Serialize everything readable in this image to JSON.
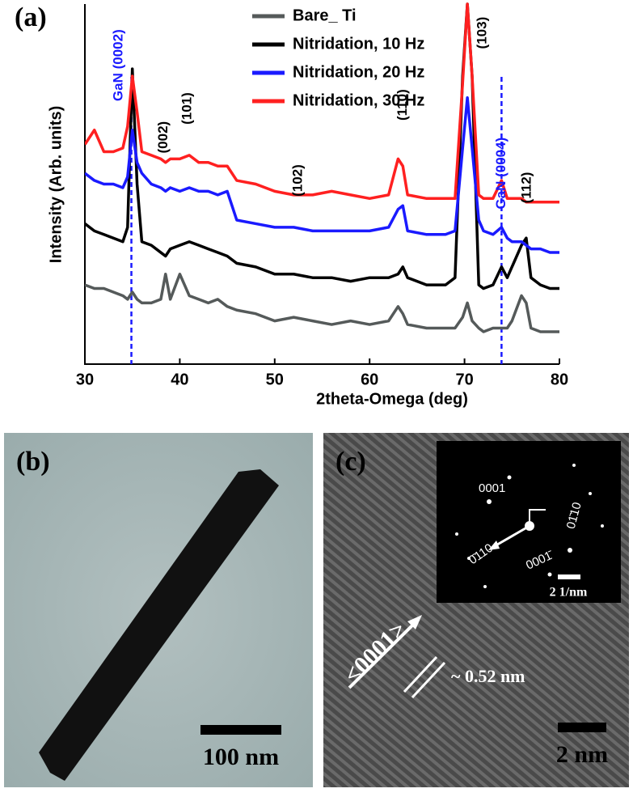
{
  "chart_data": {
    "type": "line",
    "panel_label": "(a)",
    "xlabel": "2theta-Omega (deg)",
    "ylabel": "Intensity (Arb. units)",
    "xlim": [
      30,
      80
    ],
    "xticks": [
      30,
      40,
      50,
      60,
      70,
      80
    ],
    "ylim": [
      0,
      100
    ],
    "x": [
      30,
      31,
      32,
      33,
      34,
      34.5,
      35,
      35.5,
      36,
      37,
      38,
      38.5,
      39,
      40,
      41,
      42,
      43,
      44,
      45,
      46,
      48,
      50,
      52,
      54,
      56,
      58,
      60,
      62,
      63,
      63.5,
      64,
      66,
      68,
      69,
      69.8,
      70.3,
      70.8,
      71.5,
      72,
      73,
      73.9,
      74.5,
      75,
      76,
      76.5,
      77,
      78,
      79,
      80
    ],
    "series": [
      {
        "name": "Bare_ Ti",
        "color": "#555a5a",
        "values": [
          22,
          21,
          21,
          20,
          19,
          18,
          20,
          18,
          17,
          17,
          18,
          25,
          18,
          25,
          19,
          18,
          17,
          18,
          16,
          15,
          14,
          12,
          13,
          12,
          11,
          12,
          11,
          12,
          16,
          14,
          11,
          10,
          10,
          10,
          13,
          17,
          12,
          10,
          9,
          10,
          10,
          10,
          12,
          19,
          17,
          10,
          9,
          9,
          9
        ]
      },
      {
        "name": "Nitridation, 10 Hz",
        "color": "#000000",
        "values": [
          39,
          37,
          36,
          35,
          34,
          38,
          82,
          50,
          34,
          33,
          31,
          30,
          32,
          33,
          34,
          33,
          32,
          31,
          30,
          28,
          27,
          25,
          25,
          24,
          24,
          23,
          24,
          24,
          25,
          27,
          24,
          22,
          22,
          24,
          80,
          100,
          80,
          22,
          21,
          22,
          27,
          24,
          27,
          33,
          35,
          24,
          22,
          21,
          21
        ]
      },
      {
        "name": "Nitridation, 20 Hz",
        "color": "#1a1aff",
        "values": [
          53,
          51,
          50,
          50,
          49,
          52,
          65,
          56,
          53,
          50,
          49,
          48,
          49,
          48,
          49,
          48,
          48,
          47,
          48,
          40,
          39,
          38,
          38,
          37,
          37,
          37,
          37,
          38,
          43,
          44,
          37,
          36,
          36,
          37,
          60,
          74,
          60,
          40,
          37,
          36,
          38,
          35,
          34,
          34,
          33,
          32,
          32,
          31,
          31
        ]
      },
      {
        "name": "Nitridation, 30 Hz",
        "color": "#ff2020",
        "values": [
          61,
          65,
          59,
          59,
          60,
          66,
          80,
          70,
          59,
          58,
          57,
          56,
          57,
          57,
          58,
          56,
          56,
          55,
          55,
          51,
          50,
          48,
          47,
          47,
          48,
          47,
          46,
          47,
          57,
          55,
          47,
          46,
          46,
          46,
          78,
          100,
          80,
          47,
          46,
          46,
          51,
          46,
          46,
          46,
          45,
          45,
          45,
          45,
          45
        ]
      }
    ],
    "legend": "upper right",
    "reference_lines": {
      "color": "#1a1aff",
      "values": [
        34.9,
        73.9
      ]
    },
    "annotations": [
      {
        "text": "GaN (0002)",
        "x": 33.6,
        "y": 83,
        "color": "#1a1aff"
      },
      {
        "text": "(002)",
        "x": 38.3,
        "y": 63,
        "color": "#000000"
      },
      {
        "text": "(101)",
        "x": 40.8,
        "y": 71,
        "color": "#000000"
      },
      {
        "text": "(102)",
        "x": 52.5,
        "y": 51,
        "color": "#000000"
      },
      {
        "text": "(110)",
        "x": 63.5,
        "y": 72,
        "color": "#000000"
      },
      {
        "text": "(103)",
        "x": 71.9,
        "y": 92,
        "color": "#000000"
      },
      {
        "text": "GaN (0004)",
        "x": 73.9,
        "y": 53,
        "color": "#1a1aff"
      },
      {
        "text": "(112)",
        "x": 76.6,
        "y": 49,
        "color": "#000000"
      }
    ]
  },
  "panel_b": {
    "label": "(b)",
    "scale_bar": "100 nm"
  },
  "panel_c": {
    "label": "(c)",
    "direction": "<0001>",
    "spacing": "~ 0.52 nm",
    "scale_bar": "2 nm",
    "inset": {
      "scale_bar": "2 1/nm",
      "spots": [
        "0001",
        "01̄10",
        "0̄110",
        "0001̄"
      ]
    }
  }
}
